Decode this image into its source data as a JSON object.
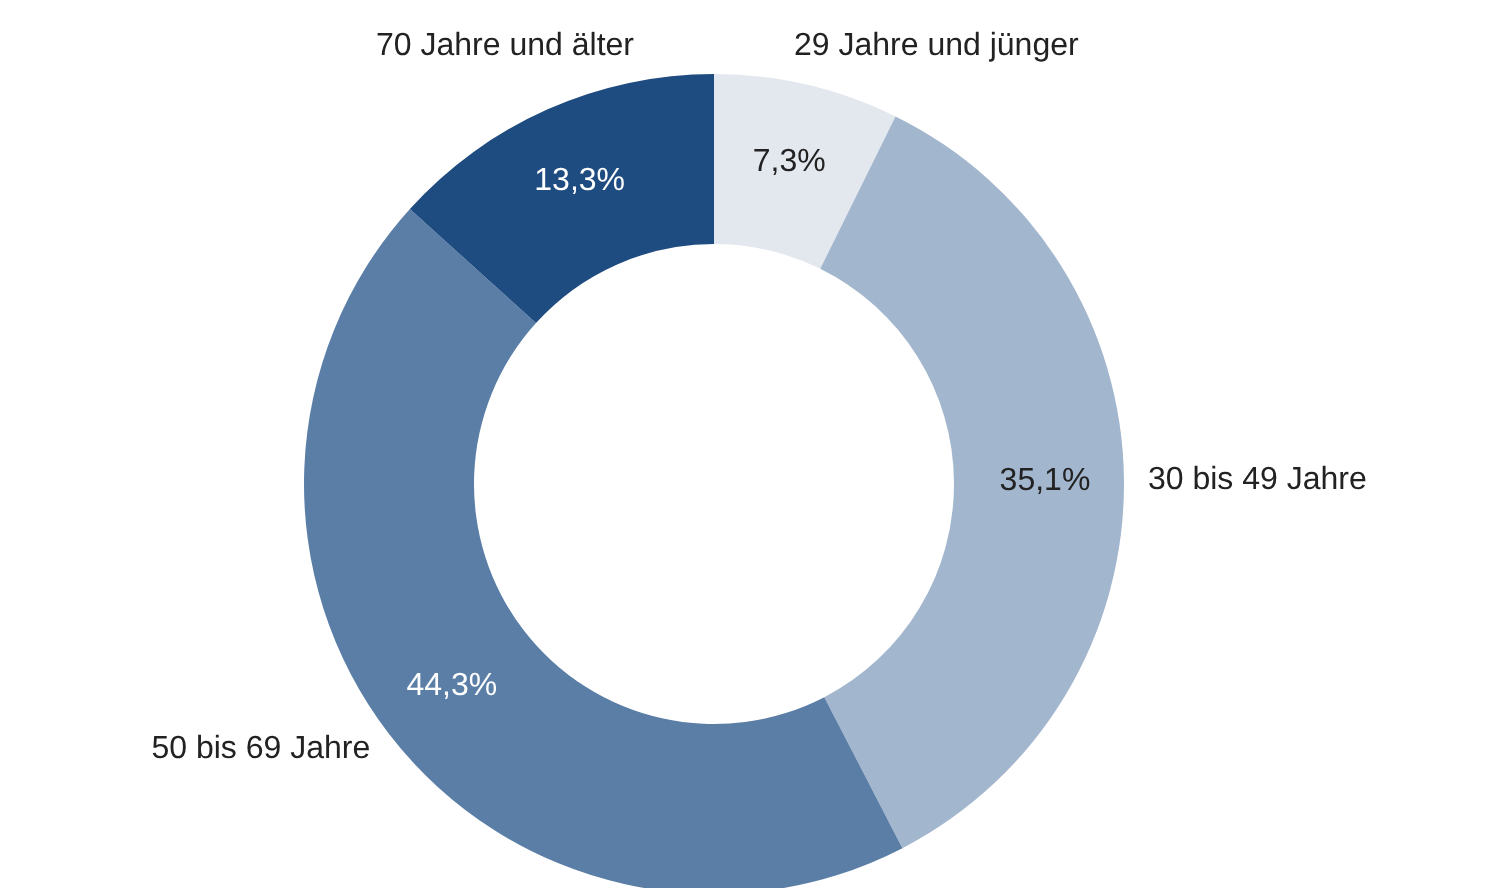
{
  "chart_data": {
    "type": "donut",
    "categories": [
      "29 Jahre und jünger",
      "30 bis 49 Jahre",
      "50 bis 69 Jahre",
      "70 Jahre und älter"
    ],
    "values": [
      7.3,
      35.1,
      44.3,
      13.3
    ],
    "colors": [
      "#e3e8ef",
      "#a2b6ce",
      "#5b7ea7",
      "#1e4b80"
    ],
    "value_labels": [
      "7,3%",
      "35,1%",
      "44,3%",
      "13,3%"
    ],
    "legend": false
  }
}
